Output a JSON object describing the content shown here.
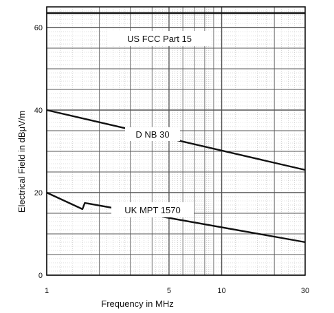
{
  "chart_data": {
    "type": "line",
    "title": "",
    "xlabel": "Frequency in MHz",
    "ylabel": "Electrical Field in dBμV/m",
    "x_scale": "log",
    "xlim": [
      1,
      30
    ],
    "ylim": [
      0,
      65
    ],
    "x_ticks": [
      {
        "value": 1,
        "label": "1"
      },
      {
        "value": 5,
        "label": "5"
      },
      {
        "value": 10,
        "label": "10"
      },
      {
        "value": 30,
        "label": "30"
      }
    ],
    "y_ticks": [
      {
        "value": 0,
        "label": "0"
      },
      {
        "value": 20,
        "label": "20"
      },
      {
        "value": 40,
        "label": "40"
      },
      {
        "value": 60,
        "label": "60"
      }
    ],
    "grid": true,
    "series": [
      {
        "name": "US FCC Part 15",
        "x": [
          1,
          30
        ],
        "y": [
          63.5,
          63.5
        ]
      },
      {
        "name": "D NB 30",
        "x": [
          1,
          30
        ],
        "y": [
          40,
          25.5
        ]
      },
      {
        "name": "UK MPT 1570",
        "x": [
          1,
          1.6,
          1.65,
          30
        ],
        "y": [
          20,
          16,
          17.5,
          8
        ]
      }
    ],
    "colors": {
      "line": "#111111",
      "grid": "#555555",
      "background": "#ffffff"
    }
  }
}
